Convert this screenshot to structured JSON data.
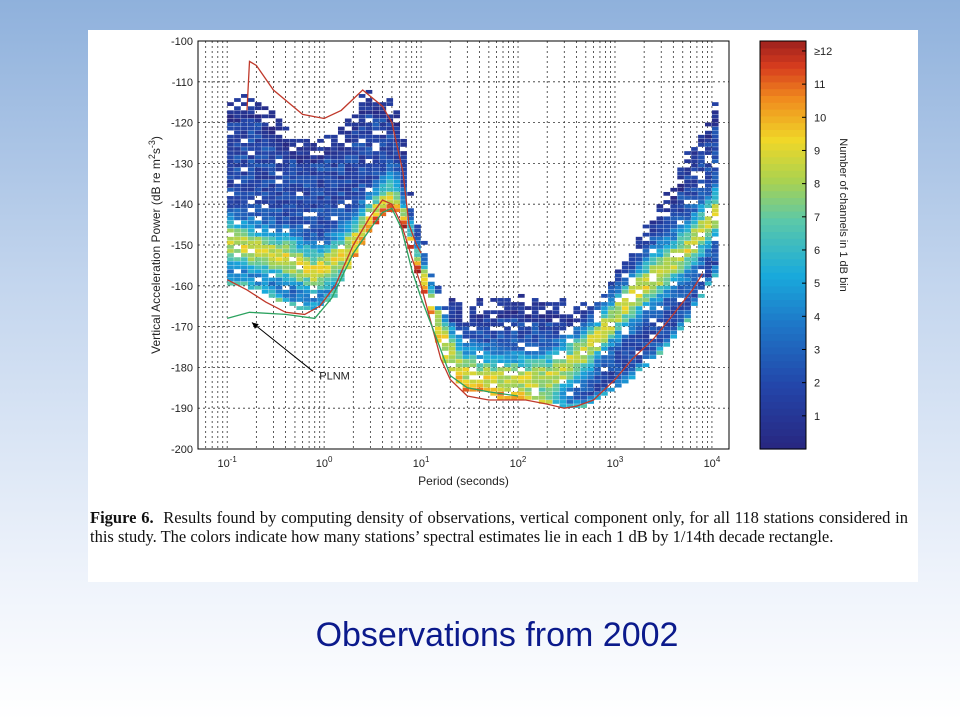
{
  "slide_title": "Observations from 2002",
  "caption": {
    "label": "Figure 6.",
    "text": "Results found by computing density of observations, vertical component only, for all 118 stations considered in this study. The colors indicate how many stations’ spectral estimates lie in each 1 dB by 1/14th decade rectangle."
  },
  "chart_data": {
    "type": "heatmap",
    "title": "",
    "xlabel": "Period (seconds)",
    "ylabel": "Vertical Acceleration Power (dB re m^2s^-3)",
    "ylabel_parts": [
      "Vertical Acceleration Power (dB re m",
      "2",
      "s",
      "-3",
      ")"
    ],
    "x_scale": "log",
    "xlim": [
      0.05,
      15000
    ],
    "ylim": [
      -200,
      -100
    ],
    "x_ticks": [
      {
        "value": 0.1,
        "base": "10",
        "exp": "-1"
      },
      {
        "value": 1,
        "base": "10",
        "exp": "0"
      },
      {
        "value": 10,
        "base": "10",
        "exp": "1"
      },
      {
        "value": 100,
        "base": "10",
        "exp": "2"
      },
      {
        "value": 1000,
        "base": "10",
        "exp": "3"
      },
      {
        "value": 10000,
        "base": "10",
        "exp": "4"
      }
    ],
    "y_ticks": [
      -100,
      -110,
      -120,
      -130,
      -140,
      -150,
      -160,
      -170,
      -180,
      -190,
      -200
    ],
    "grid": true,
    "colorbar": {
      "label": "Number of channels in 1 dB bin",
      "tick_labels": [
        "1",
        "2",
        "3",
        "4",
        "5",
        "6",
        "7",
        "8",
        "9",
        "10",
        "11",
        "≥12"
      ],
      "range": [
        0,
        12.3
      ]
    },
    "bin_size": "1 dB by 1/14th decade",
    "envelope_series": [
      {
        "color": "#c0392b",
        "points": [
          [
            0.1,
            -158.5
          ],
          [
            0.16,
            -161
          ],
          [
            0.25,
            -164
          ],
          [
            0.4,
            -166.5
          ],
          [
            0.63,
            -167
          ],
          [
            0.9,
            -165
          ],
          [
            1.3,
            -160
          ],
          [
            2,
            -150
          ],
          [
            3,
            -143
          ],
          [
            4,
            -139
          ],
          [
            5,
            -140
          ],
          [
            6.3,
            -145
          ],
          [
            8,
            -153
          ],
          [
            10,
            -160
          ],
          [
            13,
            -170
          ],
          [
            16,
            -178
          ],
          [
            20,
            -183
          ],
          [
            30,
            -187
          ],
          [
            50,
            -188
          ],
          [
            80,
            -188
          ],
          [
            120,
            -188
          ],
          [
            200,
            -189
          ],
          [
            300,
            -190
          ],
          [
            400,
            -189.5
          ],
          [
            600,
            -188
          ],
          [
            1000,
            -183
          ],
          [
            1500,
            -178
          ],
          [
            2500,
            -173
          ],
          [
            4000,
            -167
          ],
          [
            6300,
            -161
          ],
          [
            8000,
            -157
          ]
        ]
      },
      {
        "color": "#c0392b",
        "points": [
          [
            0.16,
            -117
          ],
          [
            0.17,
            -105
          ],
          [
            0.2,
            -106
          ],
          [
            0.3,
            -112
          ],
          [
            0.6,
            -118
          ],
          [
            1,
            -119
          ],
          [
            1.5,
            -117
          ],
          [
            2.5,
            -112
          ],
          [
            4,
            -116
          ],
          [
            5,
            -120
          ],
          [
            6.5,
            -132
          ],
          [
            7.5,
            -145
          ],
          [
            9,
            -150
          ],
          [
            10,
            -152
          ]
        ]
      },
      {
        "color": "#2ca25f",
        "name": "PLNM",
        "points": [
          [
            0.1,
            -168
          ],
          [
            0.17,
            -166.5
          ],
          [
            0.4,
            -167
          ],
          [
            0.8,
            -168
          ],
          [
            1.2,
            -163
          ],
          [
            2,
            -152
          ],
          [
            3,
            -146
          ],
          [
            4,
            -142
          ],
          [
            5,
            -141
          ],
          [
            6.3,
            -146
          ],
          [
            8,
            -156
          ],
          [
            10,
            -163
          ],
          [
            15,
            -174
          ],
          [
            20,
            -182
          ],
          [
            30,
            -185
          ],
          [
            50,
            -186
          ],
          [
            100,
            -187
          ]
        ]
      }
    ],
    "annotations": [
      {
        "text": "PLNM",
        "x": 0.85,
        "y": -182,
        "arrow_to_x": 0.18,
        "arrow_to_y": -169
      }
    ]
  }
}
